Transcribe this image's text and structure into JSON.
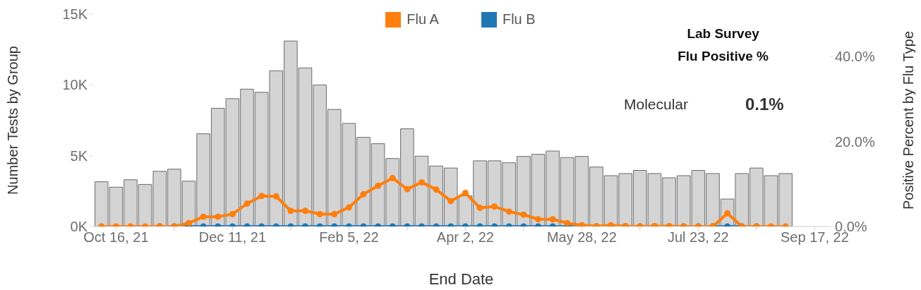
{
  "chart_data": {
    "type": "bar",
    "xlabel": "End Date",
    "ylabel": "Number Tests by Group",
    "y2label": "Positive Percent by Flu Type",
    "annotations": [
      "Lab Survey\nFlu Positive %",
      "Molecular",
      "0.1%"
    ],
    "x": [
      "2021-10-09",
      "2021-10-16",
      "2021-10-23",
      "2021-10-30",
      "2021-11-06",
      "2021-11-13",
      "2021-11-20",
      "2021-11-27",
      "2021-12-04",
      "2021-12-11",
      "2021-12-18",
      "2021-12-25",
      "2022-01-01",
      "2022-01-08",
      "2022-01-15",
      "2022-01-22",
      "2022-01-29",
      "2022-02-05",
      "2022-02-12",
      "2022-02-19",
      "2022-02-26",
      "2022-03-05",
      "2022-03-12",
      "2022-03-19",
      "2022-03-26",
      "2022-04-02",
      "2022-04-09",
      "2022-04-16",
      "2022-04-23",
      "2022-04-30",
      "2022-05-07",
      "2022-05-14",
      "2022-05-21",
      "2022-05-28",
      "2022-06-04",
      "2022-06-11",
      "2022-06-18",
      "2022-06-25",
      "2022-07-02",
      "2022-07-09",
      "2022-07-16",
      "2022-07-23",
      "2022-07-30",
      "2022-08-06",
      "2022-08-13",
      "2022-08-20",
      "2022-08-27",
      "2022-09-03"
    ],
    "series": [
      {
        "axis": "y",
        "color": "#d4d4d4",
        "values": [
          3160,
          2780,
          3300,
          2970,
          3900,
          4050,
          3200,
          6550,
          8350,
          9030,
          9700,
          9480,
          11000,
          13100,
          11200,
          10000,
          8270,
          7280,
          6300,
          5850,
          4800,
          6900,
          4970,
          4270,
          4130,
          2170,
          4640,
          4640,
          4500,
          4950,
          5100,
          5330,
          4870,
          4950,
          4200,
          3590,
          3740,
          3960,
          3740,
          3440,
          3590,
          3960,
          3740,
          1940,
          3740,
          4130,
          3590,
          3740
        ]
      },
      {
        "name": "Flu B",
        "type": "line",
        "axis": "y2",
        "color": "#1f77b4",
        "values": [
          null,
          null,
          null,
          null,
          0,
          0,
          0,
          0,
          0,
          0,
          0,
          0,
          0,
          0,
          0,
          0,
          0,
          0,
          0,
          0,
          0,
          0,
          0,
          0,
          0,
          0,
          0,
          0,
          0,
          0,
          0,
          0,
          0,
          0,
          0,
          0,
          0,
          0,
          0,
          0,
          0,
          0,
          0,
          0,
          0,
          0,
          null,
          null
        ]
      },
      {
        "name": "Flu A",
        "type": "line",
        "axis": "y2",
        "color": "#ff7f0e",
        "values": [
          0,
          0,
          0,
          0,
          0,
          0,
          0.8,
          2.3,
          2.3,
          2.9,
          5.4,
          7.2,
          7.1,
          3.7,
          3.7,
          2.9,
          2.9,
          4.5,
          7.6,
          9.6,
          11.4,
          8.8,
          10.4,
          8.7,
          6.0,
          7.9,
          4.4,
          4.7,
          3.5,
          2.8,
          1.7,
          1.7,
          0.8,
          0.3,
          0.1,
          0.3,
          0.1,
          0,
          0.1,
          0.1,
          0,
          0,
          0,
          3.1,
          0,
          0,
          0,
          0
        ]
      }
    ],
    "xlim": [
      "2021-10-05",
      "2022-09-24"
    ],
    "xticks": [
      {
        "value": "2021-10-16",
        "label": "Oct 16, 21"
      },
      {
        "value": "2021-11-13",
        "label": null
      },
      {
        "value": "2021-12-11",
        "label": "Dec 11, 21"
      },
      {
        "value": "2022-01-08",
        "label": null
      },
      {
        "value": "2022-02-05",
        "label": "Feb 5, 22"
      },
      {
        "value": "2022-03-05",
        "label": null
      },
      {
        "value": "2022-04-02",
        "label": "Apr 2, 22"
      },
      {
        "value": "2022-04-30",
        "label": null
      },
      {
        "value": "2022-05-28",
        "label": "May 28, 22"
      },
      {
        "value": "2022-06-25",
        "label": null
      },
      {
        "value": "2022-07-23",
        "label": "Jul 23, 22"
      },
      {
        "value": "2022-08-20",
        "label": null
      },
      {
        "value": "2022-09-17",
        "label": "Sep 17, 22"
      }
    ],
    "ylim": [
      0,
      15000
    ],
    "yticks": [
      {
        "value": 0,
        "label": "0K"
      },
      {
        "value": 5000,
        "label": "5K"
      },
      {
        "value": 10000,
        "label": "10K"
      },
      {
        "value": 15000,
        "label": "15K"
      }
    ],
    "y2lim": [
      0,
      50
    ],
    "y2ticks": [
      {
        "value": 0,
        "label": "0.0%"
      },
      {
        "value": 20,
        "label": "20.0%"
      },
      {
        "value": 40,
        "label": "40.0%"
      }
    ],
    "marker": "circle",
    "line_style": "solid",
    "legend": "top",
    "grid": false
  }
}
